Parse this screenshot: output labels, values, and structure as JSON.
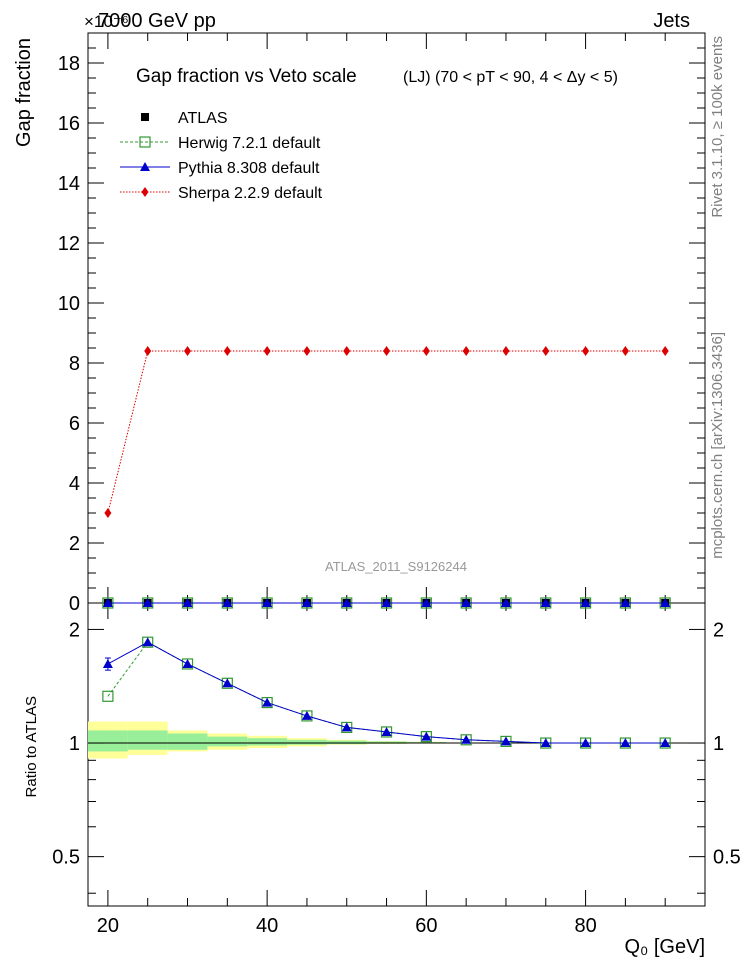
{
  "header": {
    "left": "7000 GeV pp",
    "right": "Jets",
    "exponent": "×10⁻⁶"
  },
  "side": {
    "rivet": "Rivet 3.1.10, ≥ 100k events",
    "mcplots": "mcplots.cern.ch [arXiv:1306.3436]"
  },
  "chart_data": {
    "type": "line",
    "title": "Gap fraction vs Veto scale",
    "subtitle": "(LJ) (70 < pT <  90, 4 < Δy < 5)",
    "analysis_label": "ATLAS_2011_S9126244",
    "xlabel": "Q₀ [GeV]",
    "ylabel": "Gap fraction",
    "ratio_ylabel": "Ratio to ATLAS",
    "xlim": [
      17.5,
      95
    ],
    "ylim": [
      0,
      19
    ],
    "y_scale_factor": 1e-06,
    "ratio_ylim": [
      0.37,
      2.35
    ],
    "ratio_scale": "log",
    "x_ticks": [
      20,
      40,
      60,
      80
    ],
    "y_ticks": [
      0,
      2,
      4,
      6,
      8,
      10,
      12,
      14,
      16,
      18
    ],
    "ratio_ticks": [
      0.5,
      1,
      2
    ],
    "legend_position": "top-left",
    "x": [
      20,
      25,
      30,
      35,
      40,
      45,
      50,
      55,
      60,
      65,
      70,
      75,
      80,
      85,
      90
    ],
    "series": [
      {
        "name": "ATLAS",
        "color": "#000000",
        "marker": "square",
        "values": [
          0,
          0,
          0,
          0,
          0,
          0,
          0,
          0,
          0,
          0,
          0,
          0,
          0,
          0,
          0
        ]
      },
      {
        "name": "Herwig 7.2.1 default",
        "color": "#339933",
        "marker": "open-square",
        "line": "dashed",
        "values": [
          0,
          0,
          0,
          0,
          0,
          0,
          0,
          0,
          0,
          0,
          0,
          0,
          0,
          0,
          0
        ],
        "ratio": [
          1.33,
          1.85,
          1.62,
          1.44,
          1.28,
          1.18,
          1.1,
          1.07,
          1.04,
          1.02,
          1.01,
          1.0,
          1.0,
          1.0,
          1.0
        ]
      },
      {
        "name": "Pythia 8.308 default",
        "color": "#0000cc",
        "marker": "triangle",
        "line": "solid",
        "values": [
          0,
          0,
          0,
          0,
          0,
          0,
          0,
          0,
          0,
          0,
          0,
          0,
          0,
          0,
          0
        ],
        "ratio": [
          1.62,
          1.85,
          1.62,
          1.44,
          1.28,
          1.18,
          1.1,
          1.07,
          1.04,
          1.02,
          1.01,
          1.0,
          1.0,
          1.0,
          1.0
        ],
        "ratio_err": [
          0.06,
          0.0,
          0.0,
          0.0,
          0.0,
          0.0,
          0.0,
          0.0,
          0.0,
          0.0,
          0.0,
          0.0,
          0.0,
          0.0,
          0.0
        ]
      },
      {
        "name": "Sherpa 2.2.9 default",
        "color": "#dd0000",
        "marker": "diamond",
        "line": "dotted",
        "values": [
          3.0,
          8.4,
          8.4,
          8.4,
          8.4,
          8.4,
          8.4,
          8.4,
          8.4,
          8.4,
          8.4,
          8.4,
          8.4,
          8.4,
          8.4
        ]
      }
    ],
    "ratio_bands": {
      "edges": [
        17.5,
        22.5,
        27.5,
        32.5,
        37.5,
        42.5,
        47.5,
        52.5,
        57.5,
        62.5,
        67.5,
        72.5,
        77.5,
        82.5,
        87.5,
        92.5
      ],
      "stat_lo": [
        0.95,
        0.96,
        0.96,
        0.98,
        0.985,
        0.99,
        0.993,
        0.996,
        0.998,
        0.999,
        1.0,
        1.0,
        1.0,
        1.0,
        1.0
      ],
      "stat_hi": [
        1.08,
        1.08,
        1.06,
        1.04,
        1.03,
        1.02,
        1.015,
        1.01,
        1.006,
        1.003,
        1.002,
        1.0,
        1.0,
        1.0,
        1.0
      ],
      "total_lo": [
        0.91,
        0.93,
        0.95,
        0.96,
        0.97,
        0.98,
        0.99,
        0.995,
        0.997,
        0.998,
        0.999,
        1.0,
        1.0,
        1.0,
        1.0
      ],
      "total_hi": [
        1.14,
        1.14,
        1.08,
        1.06,
        1.045,
        1.03,
        1.02,
        1.012,
        1.008,
        1.004,
        1.002,
        1.0,
        1.0,
        1.0,
        1.0
      ],
      "stat_color": "#99ee99",
      "total_color": "#ffff99"
    }
  }
}
